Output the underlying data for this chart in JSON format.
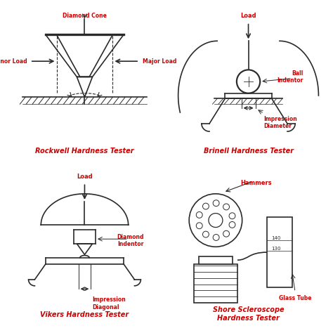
{
  "title_color": "#cc0000",
  "label_color": "#cc0000",
  "line_color": "#2a2a2a",
  "bg_color": "#ffffff",
  "titles": {
    "tl": "Rockwell Hardness Tester",
    "tr": "Brinell Hardness Tester",
    "bl": "Vikers Hardness Tester",
    "br": "Shore Scleroscope\nHardness Tester"
  },
  "labels": {
    "tl": {
      "diamond_cone": "Diamond Cone",
      "minor_load": "Minor Load",
      "major_load": "Major Load"
    },
    "tr": {
      "load": "Load",
      "ball_indentor": "Ball\nIndentor",
      "impression_diameter": "Impression\nDiameter"
    },
    "bl": {
      "load": "Load",
      "diamond_indentor": "Diamond\nIndentor",
      "impression_diagonal": "Impression\nDiagonal"
    },
    "br": {
      "hammers": "Hammers",
      "glass_tube": "Glass Tube",
      "num1": "140",
      "num2": "130"
    }
  }
}
